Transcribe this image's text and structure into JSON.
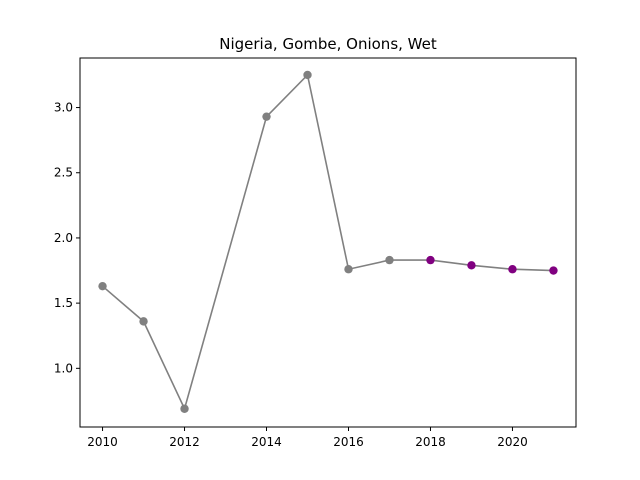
{
  "chart_data": {
    "type": "line",
    "title": "Nigeria, Gombe, Onions, Wet",
    "xlabel": "",
    "ylabel": "",
    "xlim": [
      2009.45,
      2021.55
    ],
    "ylim": [
      0.55,
      3.38
    ],
    "x_ticks": [
      2010,
      2012,
      2014,
      2016,
      2018,
      2020
    ],
    "y_ticks": [
      1.0,
      1.5,
      2.0,
      2.5,
      3.0
    ],
    "grid": false,
    "line_color": "#808080",
    "points": [
      {
        "x": 2010,
        "y": 1.63,
        "color": "#808080"
      },
      {
        "x": 2011,
        "y": 1.36,
        "color": "#808080"
      },
      {
        "x": 2012,
        "y": 0.69,
        "color": "#808080"
      },
      {
        "x": 2014,
        "y": 2.93,
        "color": "#808080"
      },
      {
        "x": 2015,
        "y": 3.25,
        "color": "#808080"
      },
      {
        "x": 2016,
        "y": 1.76,
        "color": "#808080"
      },
      {
        "x": 2017,
        "y": 1.83,
        "color": "#808080"
      },
      {
        "x": 2018,
        "y": 1.83,
        "color": "#800080"
      },
      {
        "x": 2019,
        "y": 1.79,
        "color": "#800080"
      },
      {
        "x": 2020,
        "y": 1.76,
        "color": "#800080"
      },
      {
        "x": 2021,
        "y": 1.75,
        "color": "#800080"
      }
    ]
  }
}
